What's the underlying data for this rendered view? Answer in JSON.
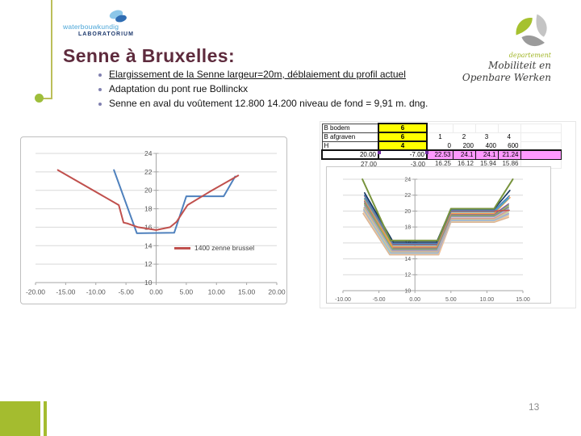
{
  "slide": {
    "title": "Senne à Bruxelles:",
    "page_number": "13",
    "bullets": [
      {
        "text": "Elargissement de la Senne largeur=20m, déblaiement du profil actuel",
        "underline": true
      },
      {
        "text": "Adaptation du pont rue Bollinckx",
        "underline": false
      },
      {
        "text": "Senne en aval du voûtement 12.800 14.200  niveau de fond = 9,91 m. dng.",
        "underline": false
      }
    ]
  },
  "logos": {
    "waterbouwkundig": {
      "line1": "waterbouwkundig",
      "line2": "LABORATORIUM"
    },
    "departement": {
      "line1": "departement",
      "line2": "Mobiliteit en",
      "line3": "Openbare Werken"
    }
  },
  "excel": {
    "table": {
      "rows": [
        [
          "B bodem",
          "6",
          "",
          "",
          "",
          "",
          ""
        ],
        [
          "B afgraven",
          "6",
          "1",
          "2",
          "3",
          "4",
          ""
        ],
        [
          "H",
          "4",
          "0",
          "200",
          "400",
          "600",
          ""
        ],
        [
          "20.00",
          "-7.00",
          "22.53",
          "24.1",
          "24.1",
          "21.24",
          ""
        ],
        [
          "27.00",
          "-3.00",
          "16.25",
          "16.12",
          "15.94",
          "15.86",
          ""
        ]
      ]
    }
  },
  "chart_data": [
    {
      "type": "line",
      "title": "",
      "xlabel": "",
      "ylabel": "",
      "xlim": [
        -20,
        20
      ],
      "ylim": [
        10,
        24
      ],
      "xticks": [
        -20,
        -15,
        -10,
        -5,
        0,
        5,
        10,
        15,
        20
      ],
      "xtick_labels": [
        "-20.00",
        "-15.00",
        "-10.00",
        "-5.00",
        "0.00",
        "5.00",
        "10.00",
        "15.00",
        "20.00"
      ],
      "yticks": [
        10,
        12,
        14,
        16,
        18,
        20,
        22,
        24
      ],
      "grid": true,
      "legend": {
        "position": "inside-right",
        "entries": [
          {
            "label": "1400 zenne brussel",
            "color": "#c0504d"
          }
        ]
      },
      "series": [
        {
          "color": "#4f81bd",
          "width": 2,
          "points": [
            [
              -7.0,
              22.2
            ],
            [
              -3.2,
              15.35
            ],
            [
              3.0,
              15.4
            ],
            [
              5.0,
              19.35
            ],
            [
              11.2,
              19.35
            ],
            [
              13.1,
              21.5
            ]
          ]
        },
        {
          "name": "1400 zenne brussel",
          "color": "#c0504d",
          "width": 2,
          "points": [
            [
              -16.3,
              22.2
            ],
            [
              -6.2,
              18.4
            ],
            [
              -5.4,
              16.5
            ],
            [
              -4.7,
              16.4
            ],
            [
              -3.0,
              16.0
            ],
            [
              0.0,
              15.7
            ],
            [
              2.3,
              16.0
            ],
            [
              3.4,
              16.6
            ],
            [
              5.2,
              18.4
            ],
            [
              9.0,
              19.9
            ],
            [
              13.6,
              21.6
            ]
          ]
        }
      ]
    },
    {
      "type": "line",
      "title": "",
      "xlabel": "",
      "ylabel": "",
      "xlim": [
        -10,
        15
      ],
      "ylim": [
        10,
        24
      ],
      "xticks": [
        -10,
        -5,
        0,
        5,
        10,
        15
      ],
      "xtick_labels": [
        "-10.00",
        "-5.00",
        "0.00",
        "5.00",
        "10.00",
        "15.00"
      ],
      "yticks": [
        10,
        12,
        14,
        16,
        18,
        20,
        22,
        24
      ],
      "grid": true,
      "legend": {
        "position": "none",
        "entries": []
      },
      "series": [
        {
          "color": "#d8b597",
          "points": [
            [
              -7.2,
              19.7
            ],
            [
              -3.5,
              14.5
            ],
            [
              3.3,
              14.5
            ],
            [
              5,
              18.6
            ],
            [
              11,
              18.6
            ],
            [
              13,
              19.2
            ]
          ]
        },
        {
          "color": "#fac090",
          "points": [
            [
              -7.1,
              19.9
            ],
            [
              -3.4,
              14.6
            ],
            [
              3.3,
              14.6
            ],
            [
              5,
              18.7
            ],
            [
              11,
              18.7
            ],
            [
              13,
              19.4
            ]
          ]
        },
        {
          "color": "#93cddd",
          "points": [
            [
              -7.1,
              20.1
            ],
            [
              -3.4,
              14.7
            ],
            [
              3.2,
              14.7
            ],
            [
              5,
              18.8
            ],
            [
              11,
              18.8
            ],
            [
              13,
              19.6
            ]
          ]
        },
        {
          "color": "#b3a2c7",
          "points": [
            [
              -7.1,
              20.2
            ],
            [
              -3.3,
              14.8
            ],
            [
              3.2,
              14.8
            ],
            [
              5,
              18.9
            ],
            [
              11,
              18.9
            ],
            [
              13,
              19.7
            ]
          ]
        },
        {
          "color": "#c3d69b",
          "points": [
            [
              -7.1,
              20.4
            ],
            [
              -3.3,
              14.9
            ],
            [
              3.1,
              14.9
            ],
            [
              5,
              19.0
            ],
            [
              11,
              19.0
            ],
            [
              13,
              19.9
            ]
          ]
        },
        {
          "color": "#d99694",
          "points": [
            [
              -7.0,
              20.5
            ],
            [
              -3.2,
              15.0
            ],
            [
              3.1,
              15.0
            ],
            [
              5,
              19.1
            ],
            [
              11,
              19.1
            ],
            [
              13,
              20.1
            ]
          ]
        },
        {
          "color": "#95b3d7",
          "points": [
            [
              -7.0,
              20.7
            ],
            [
              -3.2,
              15.1
            ],
            [
              3.1,
              15.1
            ],
            [
              5,
              19.3
            ],
            [
              11,
              19.3
            ],
            [
              13,
              20.3
            ]
          ]
        },
        {
          "color": "#808080",
          "points": [
            [
              -7.0,
              20.9
            ],
            [
              -3.1,
              15.2
            ],
            [
              3.0,
              15.2
            ],
            [
              5,
              19.4
            ],
            [
              11,
              19.4
            ],
            [
              13,
              20.5
            ]
          ]
        },
        {
          "color": "#9bbb59",
          "points": [
            [
              -7.0,
              21.0
            ],
            [
              -3.1,
              15.3
            ],
            [
              3.0,
              15.3
            ],
            [
              5,
              19.5
            ],
            [
              11,
              19.5
            ],
            [
              13,
              20.7
            ]
          ]
        },
        {
          "color": "#8064a2",
          "points": [
            [
              -7.0,
              21.2
            ],
            [
              -3.0,
              15.4
            ],
            [
              3.0,
              15.4
            ],
            [
              5,
              19.6
            ],
            [
              11,
              19.6
            ],
            [
              13,
              20.9
            ]
          ]
        },
        {
          "color": "#f79646",
          "points": [
            [
              -7.0,
              21.4
            ],
            [
              -3.1,
              15.5
            ],
            [
              3.0,
              15.5
            ],
            [
              5,
              19.7
            ],
            [
              11,
              19.7
            ],
            [
              13.2,
              21.7
            ]
          ]
        },
        {
          "color": "#4bacc6",
          "points": [
            [
              -7.0,
              21.6
            ],
            [
              -3.0,
              15.7
            ],
            [
              3.0,
              15.7
            ],
            [
              5,
              19.9
            ],
            [
              11,
              19.9
            ],
            [
              13,
              21.6
            ]
          ]
        },
        {
          "color": "#c0504d",
          "points": [
            [
              -7.0,
              21.9
            ],
            [
              -3.0,
              15.8
            ],
            [
              3.0,
              15.8
            ],
            [
              5,
              20.0
            ],
            [
              11,
              20.0
            ],
            [
              13.1,
              20.1
            ]
          ]
        },
        {
          "color": "#4f81bd",
          "points": [
            [
              -7.0,
              22.0
            ],
            [
              -3.0,
              15.9
            ],
            [
              3.0,
              15.9
            ],
            [
              5,
              20.1
            ],
            [
              11,
              20.1
            ],
            [
              13.1,
              21.9
            ]
          ]
        },
        {
          "color": "#17375e",
          "points": [
            [
              -7.0,
              22.3
            ],
            [
              -3.0,
              16.1
            ],
            [
              3.0,
              16.1
            ],
            [
              5,
              20.25
            ],
            [
              11,
              20.25
            ],
            [
              13.2,
              22.6
            ]
          ]
        },
        {
          "color": "#77933c",
          "width": 2,
          "points": [
            [
              -7.3,
              24.0
            ],
            [
              -3.4,
              16.3
            ],
            [
              3.2,
              16.3
            ],
            [
              5,
              20.3
            ],
            [
              11,
              20.3
            ],
            [
              13.6,
              24.0
            ]
          ]
        }
      ]
    }
  ],
  "colors": {
    "title": "#5e2b3d",
    "accent_green": "#a4bc2f",
    "decor_line": "#bcbf5a",
    "table_yellow": "#ffff00",
    "table_pink": "#ff99ff",
    "series_red": "#c0504d",
    "series_blue": "#4f81bd"
  }
}
